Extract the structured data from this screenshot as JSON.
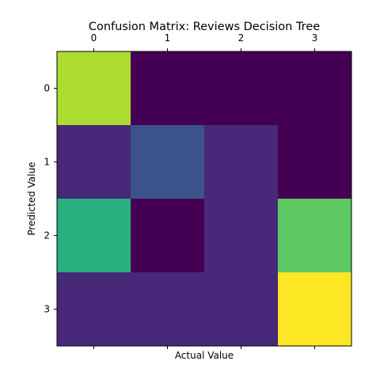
{
  "chart_data": {
    "type": "heatmap",
    "title": "Confusion Matrix: Reviews Decision Tree",
    "xlabel": "Actual Value",
    "ylabel": "Predicted Value",
    "x_tick_labels": [
      "0",
      "1",
      "2",
      "3"
    ],
    "y_tick_labels": [
      "0",
      "1",
      "2",
      "3"
    ],
    "x_ticks_position": "top",
    "colormap": "viridis",
    "vmin": 0,
    "vmax": 10,
    "matrix": [
      [
        8.5,
        0,
        0,
        0
      ],
      [
        1,
        3,
        1,
        0
      ],
      [
        6,
        0,
        1,
        7.5
      ],
      [
        1,
        1,
        1,
        10
      ]
    ],
    "cell_colors": [
      [
        "#addc30",
        "#440154",
        "#440154",
        "#440154"
      ],
      [
        "#482878",
        "#3b528b",
        "#482878",
        "#440154"
      ],
      [
        "#2ab07f",
        "#440154",
        "#482878",
        "#5ec962"
      ],
      [
        "#482878",
        "#482878",
        "#482878",
        "#fde725"
      ]
    ]
  }
}
